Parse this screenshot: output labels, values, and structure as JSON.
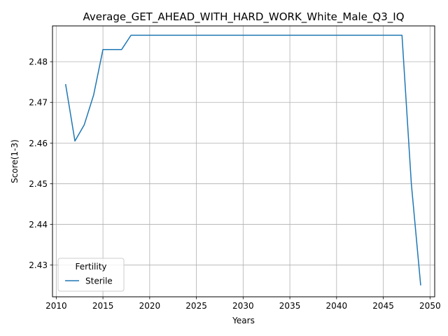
{
  "chart_data": {
    "type": "line",
    "title": "Average_GET_AHEAD_WITH_HARD_WORK_White_Male_Q3_IQ",
    "xlabel": "Years",
    "ylabel": "Score(1-3)",
    "xlim": [
      2009.6,
      2050.5
    ],
    "ylim": [
      2.4222,
      2.4888
    ],
    "xticks": [
      2010,
      2015,
      2020,
      2025,
      2030,
      2035,
      2040,
      2045,
      2050
    ],
    "yticks": [
      2.43,
      2.44,
      2.45,
      2.46,
      2.47,
      2.48
    ],
    "grid": true,
    "legend": {
      "title": "Fertility",
      "placement": "lower-left"
    },
    "series": [
      {
        "name": "Sterile",
        "color": "#1f77b4",
        "x": [
          2011,
          2012,
          2013,
          2014,
          2015,
          2016,
          2017,
          2018,
          2019,
          2020,
          2021,
          2022,
          2023,
          2024,
          2025,
          2026,
          2027,
          2028,
          2029,
          2030,
          2031,
          2032,
          2033,
          2034,
          2035,
          2036,
          2037,
          2038,
          2039,
          2040,
          2041,
          2042,
          2043,
          2044,
          2045,
          2046,
          2047,
          2048,
          2049
        ],
        "y": [
          2.4745,
          2.4605,
          2.4645,
          2.4718,
          2.483,
          2.483,
          2.483,
          2.4865,
          2.4865,
          2.4865,
          2.4865,
          2.4865,
          2.4865,
          2.4865,
          2.4865,
          2.4865,
          2.4865,
          2.4865,
          2.4865,
          2.4865,
          2.4865,
          2.4865,
          2.4865,
          2.4865,
          2.4865,
          2.4865,
          2.4865,
          2.4865,
          2.4865,
          2.4865,
          2.4865,
          2.4865,
          2.4865,
          2.4865,
          2.4865,
          2.4865,
          2.4865,
          2.45,
          2.425
        ]
      }
    ]
  }
}
